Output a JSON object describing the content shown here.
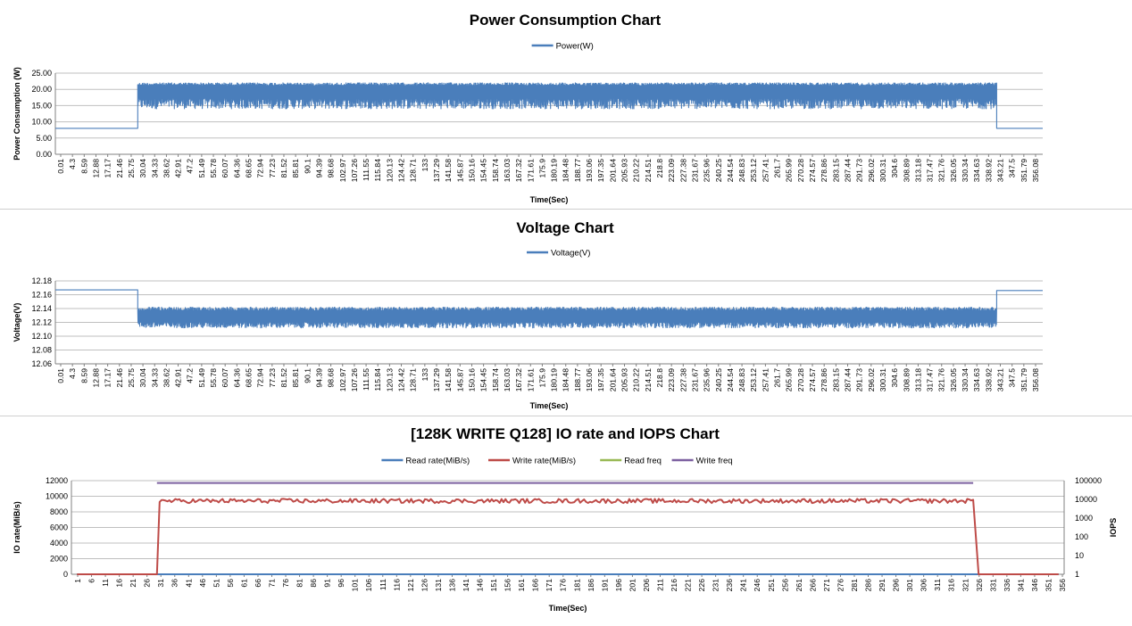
{
  "chart_data": [
    {
      "type": "line",
      "title": "Power Consumption Chart",
      "xlabel": "Time(Sec)",
      "ylabel": "Power Consumption (W)",
      "ylim": [
        0,
        25
      ],
      "yticks": [
        "0.00",
        "5.00",
        "10.00",
        "15.00",
        "20.00",
        "25.00"
      ],
      "categories": [
        "0.01",
        "4.3",
        "8.59",
        "12.88",
        "17.17",
        "21.46",
        "25.75",
        "30.04",
        "34.33",
        "38.62",
        "42.91",
        "47.2",
        "51.49",
        "55.78",
        "60.07",
        "64.36",
        "68.65",
        "72.94",
        "77.23",
        "81.52",
        "85.81",
        "90.1",
        "94.39",
        "98.68",
        "102.97",
        "107.26",
        "111.55",
        "115.84",
        "120.13",
        "124.42",
        "128.71",
        "133",
        "137.29",
        "141.58",
        "145.87",
        "150.16",
        "154.45",
        "158.74",
        "163.03",
        "167.32",
        "171.61",
        "175.9",
        "180.19",
        "184.48",
        "188.77",
        "193.06",
        "197.35",
        "201.64",
        "205.93",
        "210.22",
        "214.51",
        "218.8",
        "223.09",
        "227.38",
        "231.67",
        "235.96",
        "240.25",
        "244.54",
        "248.83",
        "253.12",
        "257.41",
        "261.7",
        "265.99",
        "270.28",
        "274.57",
        "278.86",
        "283.15",
        "287.44",
        "291.73",
        "296.02",
        "300.31",
        "304.6",
        "308.89",
        "313.18",
        "317.47",
        "321.76",
        "326.05",
        "330.34",
        "334.63",
        "338.92",
        "343.21",
        "347.5",
        "351.79",
        "356.08"
      ],
      "grid": true,
      "legend_position": "top",
      "series": [
        {
          "name": "Power(W)",
          "color": "#4a7ebb",
          "segments": [
            {
              "x_start": 0.01,
              "x_end": 30.04,
              "value": 8.0
            },
            {
              "x_start": 30.04,
              "x_end": 343.21,
              "min": 14.0,
              "max": 22.0,
              "typical": 19.5
            },
            {
              "x_start": 343.21,
              "x_end": 360.0,
              "value": 8.0
            }
          ]
        }
      ]
    },
    {
      "type": "line",
      "title": "Voltage Chart",
      "xlabel": "Time(Sec)",
      "ylabel": "Voltage(V)",
      "ylim": [
        12.06,
        12.18
      ],
      "yticks": [
        "12.06",
        "12.08",
        "12.10",
        "12.12",
        "12.14",
        "12.16",
        "12.18"
      ],
      "categories": [
        "0.01",
        "4.3",
        "8.59",
        "12.88",
        "17.17",
        "21.46",
        "25.75",
        "30.04",
        "34.33",
        "38.62",
        "42.91",
        "47.2",
        "51.49",
        "55.78",
        "60.07",
        "64.36",
        "68.65",
        "72.94",
        "77.23",
        "81.52",
        "85.81",
        "90.1",
        "94.39",
        "98.68",
        "102.97",
        "107.26",
        "111.55",
        "115.84",
        "120.13",
        "124.42",
        "128.71",
        "133",
        "137.29",
        "141.58",
        "145.87",
        "150.16",
        "154.45",
        "158.74",
        "163.03",
        "167.32",
        "171.61",
        "175.9",
        "180.19",
        "184.48",
        "188.77",
        "193.06",
        "197.35",
        "201.64",
        "205.93",
        "210.22",
        "214.51",
        "218.8",
        "223.09",
        "227.38",
        "231.67",
        "235.96",
        "240.25",
        "244.54",
        "248.83",
        "253.12",
        "257.41",
        "261.7",
        "265.99",
        "270.28",
        "274.57",
        "278.86",
        "283.15",
        "287.44",
        "291.73",
        "296.02",
        "300.31",
        "304.6",
        "308.89",
        "313.18",
        "317.47",
        "321.76",
        "326.05",
        "330.34",
        "334.63",
        "338.92",
        "343.21",
        "347.5",
        "351.79",
        "356.08"
      ],
      "grid": true,
      "legend_position": "top",
      "series": [
        {
          "name": "Voltage(V)",
          "color": "#4a7ebb",
          "segments": [
            {
              "x_start": 0.01,
              "x_end": 30.04,
              "value": 12.167
            },
            {
              "x_start": 30.04,
              "x_end": 343.21,
              "min": 12.112,
              "max": 12.142,
              "typical": 12.127
            },
            {
              "x_start": 343.21,
              "x_end": 360.0,
              "value": 12.166
            }
          ]
        }
      ]
    },
    {
      "type": "line",
      "title": "[128K WRITE Q128] IO rate and IOPS Chart",
      "xlabel": "Time(Sec)",
      "ylabel": "IO rate(MiB/s)",
      "ylabel_right": "IOPS",
      "ylim": [
        0,
        12000
      ],
      "ylim_right": [
        1,
        100000
      ],
      "y_right_scale": "log",
      "yticks": [
        "0",
        "2000",
        "4000",
        "6000",
        "8000",
        "10000",
        "12000"
      ],
      "yticks_right": [
        "1",
        "10",
        "100",
        "1000",
        "10000",
        "100000"
      ],
      "categories": [
        "1",
        "6",
        "11",
        "16",
        "21",
        "26",
        "31",
        "36",
        "41",
        "46",
        "51",
        "56",
        "61",
        "66",
        "71",
        "76",
        "81",
        "86",
        "91",
        "96",
        "101",
        "106",
        "111",
        "116",
        "121",
        "126",
        "131",
        "136",
        "141",
        "146",
        "151",
        "156",
        "161",
        "166",
        "171",
        "176",
        "181",
        "186",
        "191",
        "196",
        "201",
        "206",
        "211",
        "216",
        "221",
        "226",
        "231",
        "236",
        "241",
        "246",
        "251",
        "256",
        "261",
        "266",
        "271",
        "276",
        "281",
        "286",
        "291",
        "296",
        "301",
        "306",
        "311",
        "316",
        "321",
        "326",
        "331",
        "336",
        "341",
        "346",
        "351",
        "356"
      ],
      "grid": true,
      "legend_position": "top",
      "series": [
        {
          "name": "Read rate(MiB/s)",
          "color": "#4a7ebb",
          "axis": "left",
          "segments": [
            {
              "x_start": 1,
              "x_end": 357,
              "value": 0
            }
          ]
        },
        {
          "name": "Write rate(MiB/s)",
          "color": "#be4b48",
          "axis": "left",
          "segments": [
            {
              "x_start": 1,
              "x_end": 30,
              "value": 0
            },
            {
              "x_start": 31,
              "x_end": 326,
              "min": 8900,
              "max": 9900,
              "typical": 9400
            },
            {
              "x_start": 328,
              "x_end": 357,
              "value": 0
            }
          ]
        },
        {
          "name": "Read freq",
          "color": "#98b954",
          "axis": "right",
          "segments": []
        },
        {
          "name": "Write freq",
          "color": "#7d60a0",
          "axis": "right",
          "segments": [
            {
              "x_start": 30,
              "x_end": 326,
              "value": 75000
            }
          ]
        }
      ]
    }
  ]
}
